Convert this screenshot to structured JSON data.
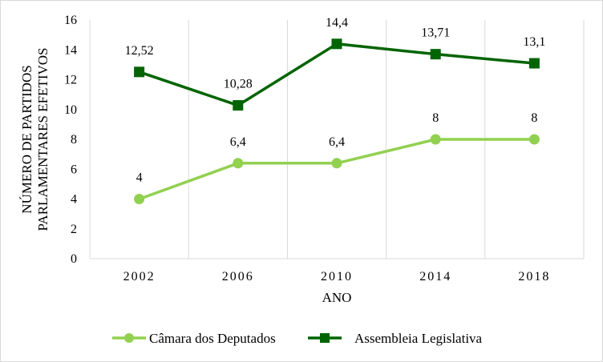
{
  "chart_data": {
    "type": "line",
    "categories": [
      "2002",
      "2006",
      "2010",
      "2014",
      "2018"
    ],
    "series": [
      {
        "name": "Câmara dos Deputados",
        "values": [
          4,
          6.4,
          6.4,
          8,
          8
        ],
        "labels": [
          "4",
          "6,4",
          "6,4",
          "8",
          "8"
        ],
        "color": "#92d050",
        "marker": "circle"
      },
      {
        "name": "Assembleia Legislativa",
        "values": [
          12.52,
          10.28,
          14.4,
          13.71,
          13.1
        ],
        "labels": [
          "12,52",
          "10,28",
          "14,4",
          "13,71",
          "13,1"
        ],
        "color": "#006400",
        "marker": "square"
      }
    ],
    "xlabel": "ANO",
    "ylabel_lines": [
      "NÚMERO DE PARTIDOS",
      "PARLAMENTARES EFETIVOS"
    ],
    "ylim": [
      0,
      16
    ],
    "yticks": [
      0,
      2,
      4,
      6,
      8,
      10,
      12,
      14,
      16
    ],
    "grid": "vertical",
    "legend_position": "bottom"
  }
}
